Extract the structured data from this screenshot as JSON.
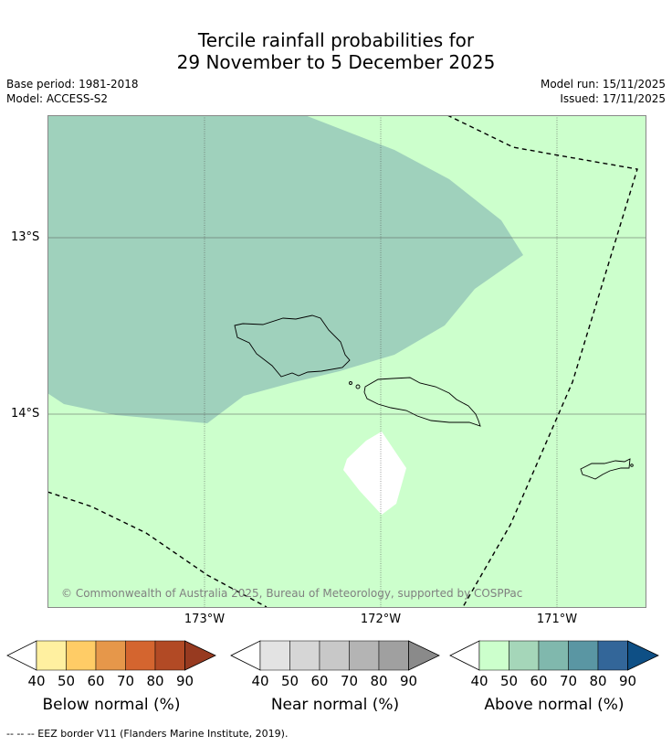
{
  "title": {
    "line1": "Tercile rainfall probabilities for",
    "line2": "29 November to 5 December 2025"
  },
  "meta": {
    "base_period": "Base period: 1981-2018",
    "model": "Model: ACCESS-S2",
    "model_run": "Model run: 15/11/2025",
    "issued": "Issued: 17/11/2025"
  },
  "map": {
    "latitude_labels": [
      "13°S",
      "14°S"
    ],
    "longitude_labels": [
      "173°W",
      "172°W",
      "171°W"
    ],
    "copyright": "© Commonwealth of Australia 2025, Bureau of Meteorology, supported by COSPPac",
    "colors": {
      "background": "#ccffcc",
      "above_50": "#9fd1bc",
      "no_data": "#ffffff"
    }
  },
  "legends": [
    {
      "title": "Below normal (%)",
      "ticks": [
        "40",
        "50",
        "60",
        "70",
        "80",
        "90"
      ],
      "colors": [
        "#fff0a0",
        "#ffcc66",
        "#e6974a",
        "#d4652f",
        "#b24a25",
        "#973a20"
      ]
    },
    {
      "title": "Near normal (%)",
      "ticks": [
        "40",
        "50",
        "60",
        "70",
        "80",
        "90"
      ],
      "colors": [
        "#e3e3e3",
        "#d6d6d6",
        "#c8c8c8",
        "#b4b4b4",
        "#a0a0a0",
        "#8a8a8a"
      ]
    },
    {
      "title": "Above normal (%)",
      "ticks": [
        "40",
        "50",
        "60",
        "70",
        "80",
        "90"
      ],
      "colors": [
        "#ccffcc",
        "#a5d6b9",
        "#80b8ad",
        "#5a96a3",
        "#336699",
        "#0e4f85"
      ]
    }
  ],
  "footnote": "-- -- -- EEZ border V11 (Flanders Marine Institute, 2019)."
}
